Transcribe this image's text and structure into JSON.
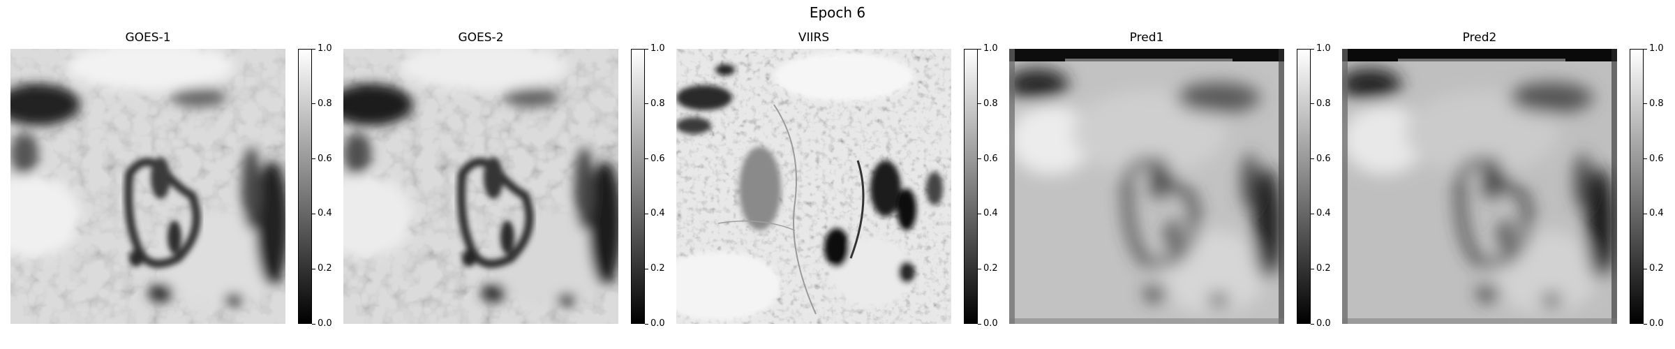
{
  "figure": {
    "title": "Epoch 6"
  },
  "colorbar": {
    "colormap": "gray",
    "ticks": [
      "0.0",
      "0.2",
      "0.4",
      "0.6",
      "0.8",
      "1.0"
    ]
  },
  "panels": [
    {
      "title": "GOES-1"
    },
    {
      "title": "GOES-2"
    },
    {
      "title": "VIIRS"
    },
    {
      "title": "Pred1"
    },
    {
      "title": "Pred2"
    }
  ]
}
